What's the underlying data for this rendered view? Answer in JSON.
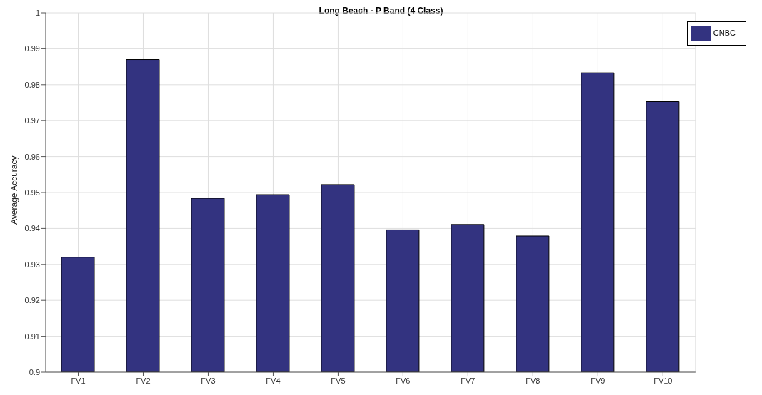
{
  "chart_data": {
    "type": "bar",
    "title": "Long Beach - P Band (4 Class)",
    "ylabel": "Average Accuracy",
    "categories": [
      "FV1",
      "FV2",
      "FV3",
      "FV4",
      "FV5",
      "FV6",
      "FV7",
      "FV8",
      "FV9",
      "FV10"
    ],
    "series": [
      {
        "name": "CNBC",
        "color": "#333380",
        "values": [
          0.932,
          0.987,
          0.9484,
          0.9494,
          0.9522,
          0.9396,
          0.9411,
          0.9379,
          0.9833,
          0.9753
        ]
      }
    ],
    "ylim": [
      0.9,
      1
    ],
    "yticks": [
      0.9,
      0.91,
      0.92,
      0.93,
      0.94,
      0.95,
      0.96,
      0.97,
      0.98,
      0.99,
      1
    ],
    "grid": true,
    "legend": "top right"
  }
}
